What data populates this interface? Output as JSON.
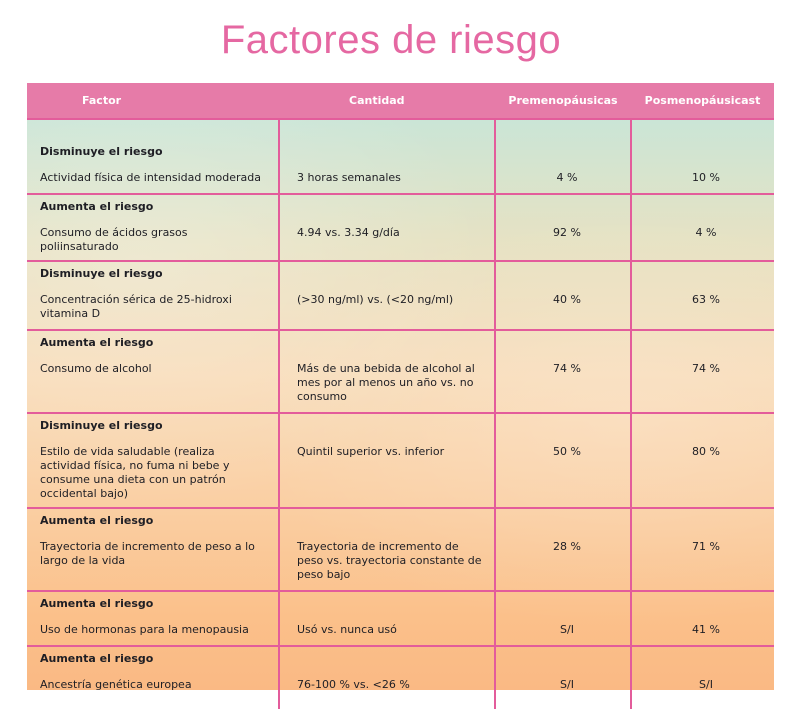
{
  "title": "Factores de riesgo",
  "table": {
    "headers": {
      "factor": "Factor",
      "cantidad": "Cantidad",
      "premenopausicas": "Premenopáusicas",
      "posmenopausicas": "Posmenopáusicast"
    },
    "rows": [
      {
        "efecto": "Disminuye el riesgo",
        "factor": "Actividad física de intensidad moderada",
        "cantidad": "3 horas semanales",
        "pre": "4 %",
        "post": "10 %"
      },
      {
        "efecto": "Aumenta el riesgo",
        "factor": "Consumo de ácidos grasos poliinsaturado",
        "cantidad": "4.94 vs. 3.34 g/día",
        "pre": "92 %",
        "post": "4 %"
      },
      {
        "efecto": "Disminuye el riesgo",
        "factor": "Concentración sérica de 25-hidroxi vitamina D",
        "cantidad": "(>30 ng/ml) vs. (<20 ng/ml)",
        "pre": "40 %",
        "post": "63 %"
      },
      {
        "efecto": "Aumenta el riesgo",
        "factor": "Consumo de alcohol",
        "cantidad": "Más de una bebida de alcohol al mes por al menos un año vs. no consumo",
        "pre": "74 %",
        "post": "74 %"
      },
      {
        "efecto": "Disminuye el riesgo",
        "factor": "Estilo de vida saludable (realiza actividad física, no fuma ni bebe y consume una dieta con un patrón occidental bajo)",
        "cantidad": "Quintil superior vs. inferior",
        "pre": "50 %",
        "post": "80 %"
      },
      {
        "efecto": "Aumenta el riesgo",
        "factor": "Trayectoria de incremento de peso a lo largo de la vida",
        "cantidad": "Trayectoria de incremento de peso vs. trayectoria constante de peso bajo",
        "pre": "28 %",
        "post": "71 %"
      },
      {
        "efecto": "Aumenta el riesgo",
        "factor": "Uso de hormonas para la menopausia",
        "cantidad": "Usó vs. nunca usó",
        "pre": "S/I",
        "post": "41 %"
      },
      {
        "efecto": "Aumenta el riesgo",
        "factor": "Ancestría genética europea",
        "cantidad": "76-100 % vs. <26 %",
        "pre": "S/I",
        "post": "S/I"
      }
    ]
  },
  "colors": {
    "accent": "#e568a2",
    "header_bg": "#e67ba8",
    "rule": "#e35c9b"
  }
}
